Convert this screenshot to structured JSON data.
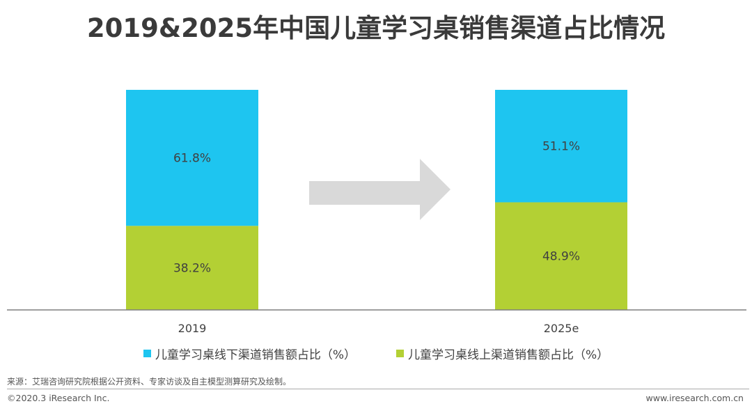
{
  "title": "2019&2025年中国儿童学习桌销售渠道占比情况",
  "chart_data": {
    "type": "bar",
    "stacked": true,
    "categories": [
      "2019",
      "2025e"
    ],
    "series": [
      {
        "name": "儿童学习桌线上渠道销售额占比（%）",
        "values": [
          38.2,
          48.9
        ],
        "labels": [
          "38.2%",
          "48.9%"
        ],
        "color": "#b3d034"
      },
      {
        "name": "儿童学习桌线下渠道销售额占比（%）",
        "values": [
          61.8,
          51.1
        ],
        "labels": [
          "61.8%",
          "51.1%"
        ],
        "color": "#1ec5f0"
      }
    ],
    "ylim": [
      0,
      100
    ],
    "legend_position": "bottom",
    "grid": false,
    "annotations": [
      "arrow from 2019 to 2025e"
    ]
  },
  "legend": {
    "offline": "儿童学习桌线下渠道销售额占比（%）",
    "online": "儿童学习桌线上渠道销售额占比（%）"
  },
  "colors": {
    "offline": "#1ec5f0",
    "online": "#b3d034",
    "arrow": "#d9d9d9",
    "axis": "#7f7f7f"
  },
  "footer": {
    "source": "来源：艾瑞咨询研究院根据公开资料、专家访谈及自主模型测算研究及绘制。",
    "copyright": "©2020.3 iResearch Inc.",
    "website": "www.iresearch.com.cn"
  }
}
